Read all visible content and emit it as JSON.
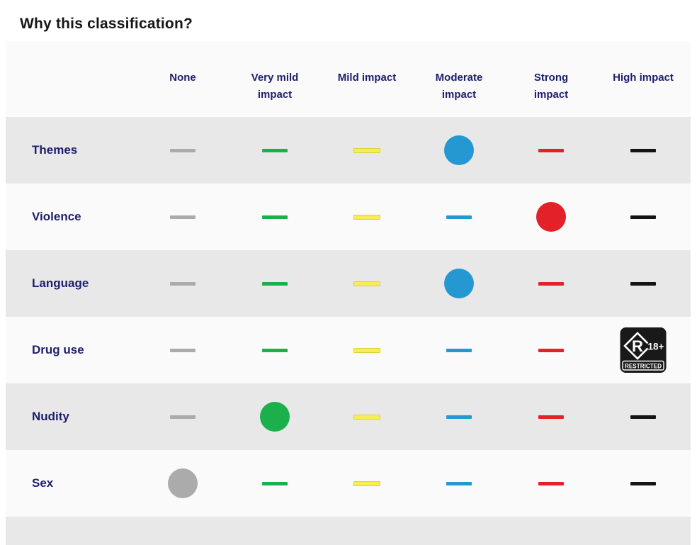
{
  "page": {
    "title": "Why this classification?",
    "background": "#ffffff"
  },
  "classification_table": {
    "columns": [
      {
        "id": "none",
        "label": "None",
        "color": "#ababab"
      },
      {
        "id": "very-mild",
        "label": "Very mild impact",
        "color": "#1bb04b"
      },
      {
        "id": "mild",
        "label": "Mild impact",
        "color": "#f7ee54",
        "border_color": "#dcd13a"
      },
      {
        "id": "moderate",
        "label": "Moderate impact",
        "color": "#2598d2"
      },
      {
        "id": "strong",
        "label": "Strong impact",
        "color": "#e32128"
      },
      {
        "id": "high",
        "label": "High impact",
        "color": "#141414"
      }
    ],
    "rows": [
      {
        "label": "Themes",
        "selected": "moderate",
        "marker": "circle"
      },
      {
        "label": "Violence",
        "selected": "strong",
        "marker": "circle"
      },
      {
        "label": "Language",
        "selected": "moderate",
        "marker": "circle"
      },
      {
        "label": "Drug use",
        "selected": "high",
        "marker": "r18-badge"
      },
      {
        "label": "Nudity",
        "selected": "very-mild",
        "marker": "circle"
      },
      {
        "label": "Sex",
        "selected": "none",
        "marker": "circle"
      }
    ],
    "r18_badge": {
      "rating_letter": "R",
      "age_text": "18+",
      "caption": "RESTRICTED",
      "background": "#191919",
      "foreground": "#ffffff"
    },
    "style": {
      "row_background_shaded": "#e8e8e8",
      "row_background_plain": "#fafafa",
      "label_text_color": "#1e1e6e"
    }
  }
}
